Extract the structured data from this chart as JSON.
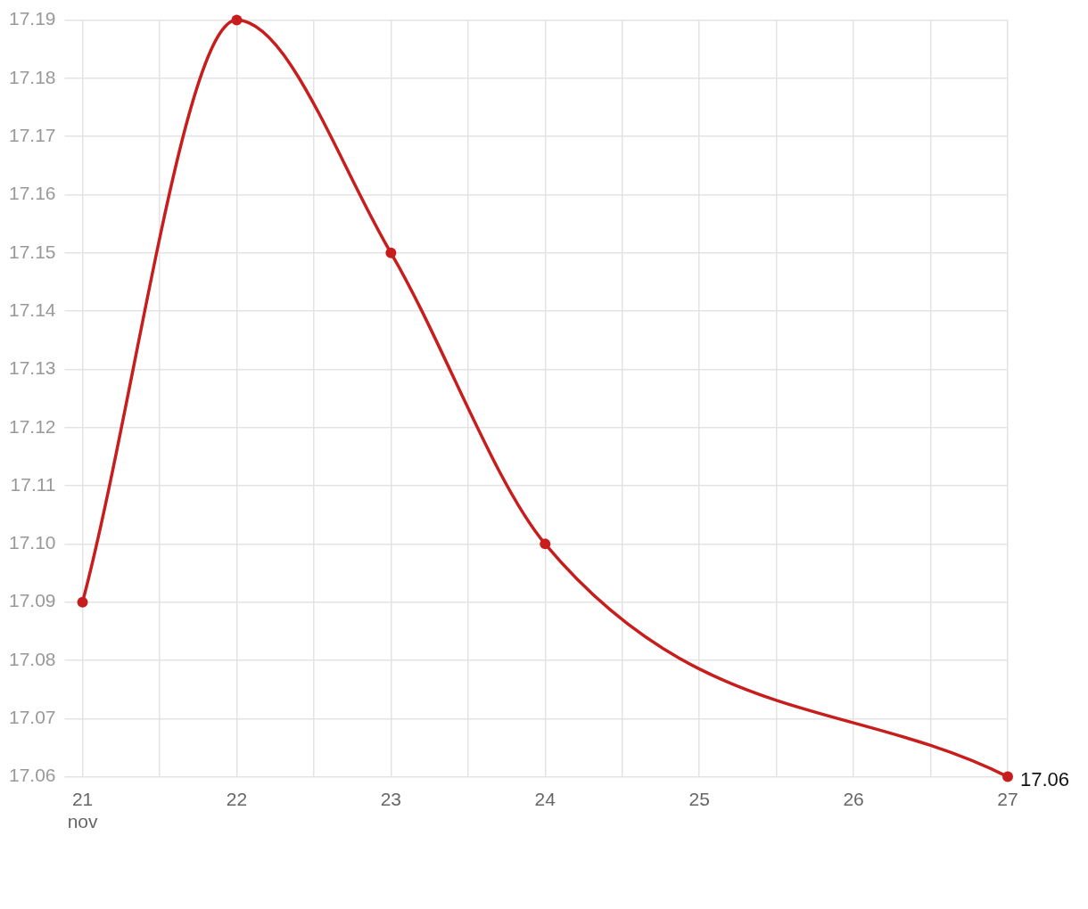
{
  "chart_data": {
    "type": "line",
    "x": [
      "--11-21",
      "--11-22",
      "--11-23",
      "--11-24",
      "--11-27"
    ],
    "series": [
      {
        "color": "#c71e1d",
        "values": [
          17.09,
          17.19,
          17.15,
          17.1,
          17.06
        ],
        "value_labels": [
          null,
          null,
          null,
          null,
          "17.06"
        ]
      }
    ],
    "xlim": [
      "--11-21",
      "--11-27"
    ],
    "xticks": [
      {
        "value": "--11-21",
        "label": "21\nnov"
      },
      {
        "value": "--11-21T12:00",
        "label": null
      },
      {
        "value": "--11-22",
        "label": "22"
      },
      {
        "value": "--11-22T12:00",
        "label": null
      },
      {
        "value": "--11-23",
        "label": "23"
      },
      {
        "value": "--11-23T12:00",
        "label": null
      },
      {
        "value": "--11-24",
        "label": "24"
      },
      {
        "value": "--11-24T12:00",
        "label": null
      },
      {
        "value": "--11-25",
        "label": "25"
      },
      {
        "value": "--11-25T12:00",
        "label": null
      },
      {
        "value": "--11-26",
        "label": "26"
      },
      {
        "value": "--11-26T12:00",
        "label": null
      },
      {
        "value": "--11-27",
        "label": "27"
      }
    ],
    "ylim": [
      17.06,
      17.19
    ],
    "yticks": [
      17.06,
      17.07,
      17.08,
      17.09,
      {
        "value": 17.1,
        "label": "17.10"
      },
      17.11,
      17.12,
      17.13,
      17.14,
      17.15,
      17.16,
      17.17,
      17.18,
      17.19
    ],
    "grid": true,
    "legend": false,
    "marker": "circle",
    "line_style": "solid"
  }
}
